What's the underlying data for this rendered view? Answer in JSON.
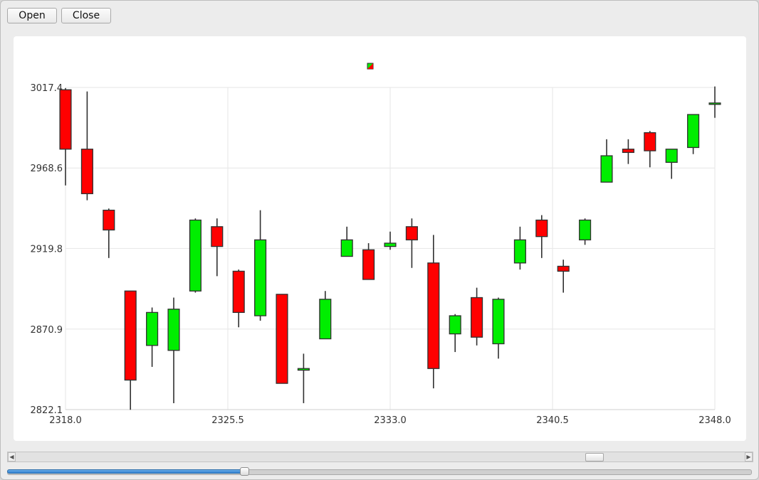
{
  "toolbar": {
    "open_label": "Open",
    "close_label": "Close"
  },
  "colors": {
    "up": "#00ee00",
    "down": "#ff0000",
    "outline": "#303030",
    "grid": "#e6e6e6"
  },
  "chart_data": {
    "type": "candlestick",
    "title": "",
    "xlabel": "",
    "ylabel": "",
    "xlim": [
      2318.0,
      2348.0
    ],
    "ylim": [
      2822.1,
      3017.4
    ],
    "x_ticks": [
      "2318.0",
      "2325.5",
      "2333.0",
      "2340.5",
      "2348.0"
    ],
    "y_ticks": [
      "3017.4",
      "2968.6",
      "2919.8",
      "2870.9",
      "2822.1"
    ],
    "grid": true,
    "legend": {
      "position": "top-center",
      "entries": [
        ""
      ]
    },
    "candles": [
      {
        "x": 2318,
        "open": 3016,
        "close": 2980,
        "high": 3017,
        "low": 2958
      },
      {
        "x": 2319,
        "open": 2980,
        "close": 2953,
        "high": 3015,
        "low": 2949
      },
      {
        "x": 2320,
        "open": 2943,
        "close": 2931,
        "high": 2944,
        "low": 2914
      },
      {
        "x": 2321,
        "open": 2894,
        "close": 2840,
        "high": 2894,
        "low": 2822
      },
      {
        "x": 2322,
        "open": 2861,
        "close": 2881,
        "high": 2884,
        "low": 2848
      },
      {
        "x": 2323,
        "open": 2858,
        "close": 2883,
        "high": 2890,
        "low": 2826
      },
      {
        "x": 2324,
        "open": 2894,
        "close": 2937,
        "high": 2938,
        "low": 2893
      },
      {
        "x": 2325,
        "open": 2933,
        "close": 2921,
        "high": 2938,
        "low": 2903
      },
      {
        "x": 2326,
        "open": 2906,
        "close": 2881,
        "high": 2907,
        "low": 2872
      },
      {
        "x": 2327,
        "open": 2879,
        "close": 2925,
        "high": 2943,
        "low": 2876
      },
      {
        "x": 2328,
        "open": 2892,
        "close": 2838,
        "high": 2892,
        "low": 2838
      },
      {
        "x": 2329,
        "open": 2846,
        "close": 2847,
        "high": 2856,
        "low": 2826
      },
      {
        "x": 2330,
        "open": 2865,
        "close": 2889,
        "high": 2894,
        "low": 2865
      },
      {
        "x": 2331,
        "open": 2915,
        "close": 2925,
        "high": 2933,
        "low": 2915
      },
      {
        "x": 2332,
        "open": 2919,
        "close": 2901,
        "high": 2923,
        "low": 2901
      },
      {
        "x": 2333,
        "open": 2921,
        "close": 2923,
        "high": 2930,
        "low": 2919
      },
      {
        "x": 2334,
        "open": 2933,
        "close": 2925,
        "high": 2938,
        "low": 2908
      },
      {
        "x": 2335,
        "open": 2911,
        "close": 2847,
        "high": 2928,
        "low": 2835
      },
      {
        "x": 2336,
        "open": 2868,
        "close": 2879,
        "high": 2880,
        "low": 2857
      },
      {
        "x": 2337,
        "open": 2890,
        "close": 2866,
        "high": 2896,
        "low": 2861
      },
      {
        "x": 2338,
        "open": 2862,
        "close": 2889,
        "high": 2890,
        "low": 2853
      },
      {
        "x": 2339,
        "open": 2911,
        "close": 2925,
        "high": 2933,
        "low": 2907
      },
      {
        "x": 2340,
        "open": 2937,
        "close": 2927,
        "high": 2940,
        "low": 2914
      },
      {
        "x": 2341,
        "open": 2909,
        "close": 2906,
        "high": 2913,
        "low": 2893
      },
      {
        "x": 2342,
        "open": 2925,
        "close": 2937,
        "high": 2938,
        "low": 2922
      },
      {
        "x": 2343,
        "open": 2960,
        "close": 2976,
        "high": 2986,
        "low": 2960
      },
      {
        "x": 2344,
        "open": 2980,
        "close": 2978,
        "high": 2986,
        "low": 2971
      },
      {
        "x": 2345,
        "open": 2990,
        "close": 2979,
        "high": 2991,
        "low": 2969
      },
      {
        "x": 2346,
        "open": 2972,
        "close": 2980,
        "high": 2980,
        "low": 2962
      },
      {
        "x": 2347,
        "open": 2981,
        "close": 3001,
        "high": 3001,
        "low": 2977
      },
      {
        "x": 2348,
        "open": 3008,
        "close": 3008,
        "high": 3018,
        "low": 2999
      }
    ]
  },
  "controls": {
    "slider_value_fraction": 0.318,
    "scroll_position_fraction": 0.8
  }
}
